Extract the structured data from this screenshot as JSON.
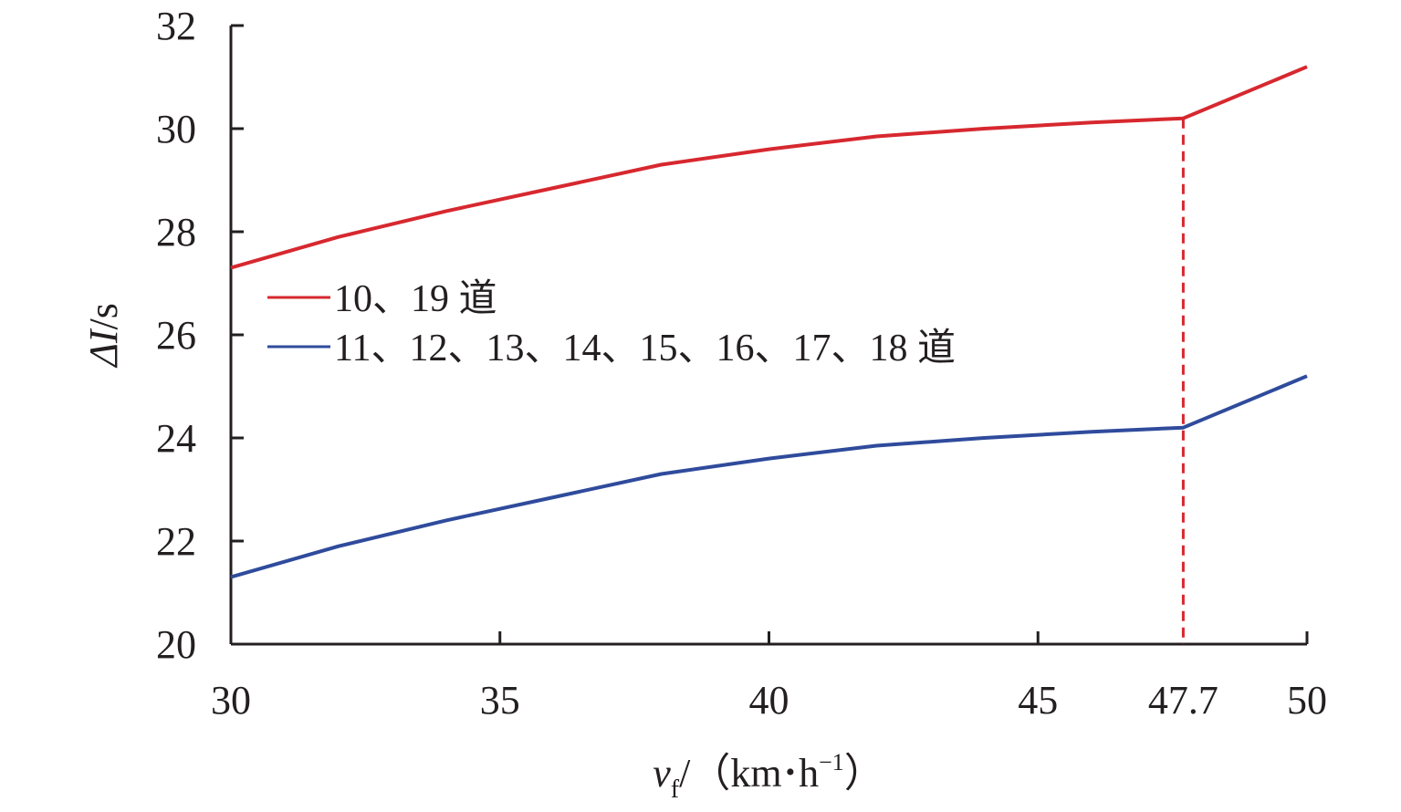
{
  "chart_data": {
    "type": "line",
    "title": "",
    "xlabel": {
      "var": "v",
      "sub": "f",
      "unit_open": "/（km",
      "dot": "•",
      "unit_h": "h",
      "sup": "−1",
      "unit_close": "）"
    },
    "ylabel": {
      "symbol": "ΔI",
      "unit": "/s"
    },
    "xlim": [
      30,
      50
    ],
    "ylim": [
      20,
      32
    ],
    "x_ticks": [
      30,
      35,
      40,
      45,
      47.7,
      50
    ],
    "x_tick_labels": [
      "30",
      "35",
      "40",
      "45",
      "47.7",
      "50"
    ],
    "y_ticks": [
      20,
      22,
      24,
      26,
      28,
      30,
      32
    ],
    "y_tick_labels": [
      "20",
      "22",
      "24",
      "26",
      "28",
      "30",
      "32"
    ],
    "grid": false,
    "legend_position": "middle-left",
    "series": [
      {
        "name": "10、19 道",
        "color": "#d7282f",
        "x": [
          30,
          32,
          34,
          36,
          38,
          40,
          42,
          44,
          46,
          47.7,
          50
        ],
        "y": [
          27.3,
          27.9,
          28.4,
          28.85,
          29.3,
          29.6,
          29.85,
          30.0,
          30.12,
          30.2,
          31.2
        ]
      },
      {
        "name": "11、12、13、14、15、16、17、18 道",
        "color": "#2f4b9c",
        "x": [
          30,
          32,
          34,
          36,
          38,
          40,
          42,
          44,
          46,
          47.7,
          50
        ],
        "y": [
          21.3,
          21.9,
          22.4,
          22.85,
          23.3,
          23.6,
          23.85,
          24.0,
          24.12,
          24.2,
          25.2
        ]
      }
    ],
    "annotations": [
      {
        "type": "vline",
        "x": 47.7,
        "y_top": 30.2,
        "color": "#d7282f",
        "style": "dashed",
        "highlight_tick_color": "#d7282f"
      }
    ],
    "axis_color": "#231f20"
  }
}
